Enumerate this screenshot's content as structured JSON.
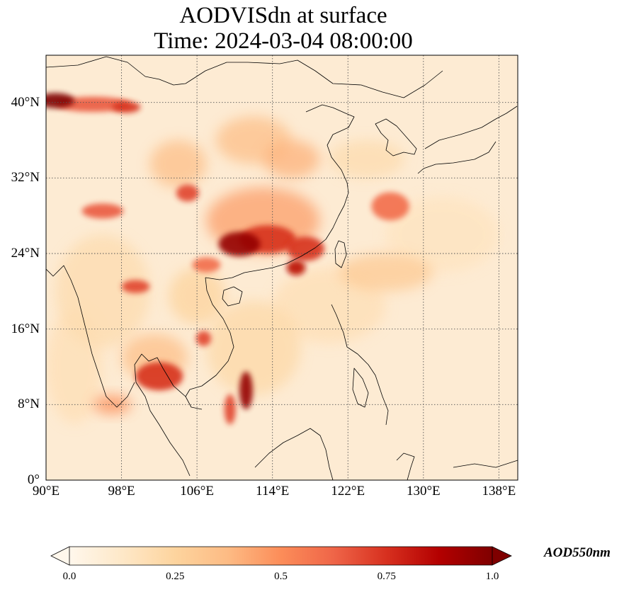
{
  "title": {
    "line1": "AODVISdn at surface",
    "line2": "Time: 2024-03-04 08:00:00"
  },
  "map": {
    "extent": {
      "lon_min": 90,
      "lon_max": 140,
      "lat_min": 0,
      "lat_max": 45
    },
    "gridlines": true,
    "colormap": "OrRd",
    "lon_ticks": [
      {
        "value": 90,
        "label": "90°E"
      },
      {
        "value": 98,
        "label": "98°E"
      },
      {
        "value": 106,
        "label": "106°E"
      },
      {
        "value": 114,
        "label": "114°E"
      },
      {
        "value": 122,
        "label": "122°E"
      },
      {
        "value": 130,
        "label": "130°E"
      },
      {
        "value": 138,
        "label": "138°E"
      }
    ],
    "lat_ticks": [
      {
        "value": 0,
        "label": "0°"
      },
      {
        "value": 8,
        "label": "8°N"
      },
      {
        "value": 16,
        "label": "16°N"
      },
      {
        "value": 24,
        "label": "24°N"
      },
      {
        "value": 32,
        "label": "32°N"
      },
      {
        "value": 40,
        "label": "40°N"
      }
    ],
    "aod_features": [
      {
        "lon": 91.0,
        "lat": 40.2,
        "rlon": 2.0,
        "rlat": 0.8,
        "value": 1.0
      },
      {
        "lon": 95.0,
        "lat": 39.8,
        "rlon": 4.0,
        "rlat": 0.8,
        "value": 0.65
      },
      {
        "lon": 98.5,
        "lat": 39.5,
        "rlon": 1.5,
        "rlat": 0.6,
        "value": 0.75
      },
      {
        "lon": 105.0,
        "lat": 30.4,
        "rlon": 1.2,
        "rlat": 0.9,
        "value": 0.7
      },
      {
        "lon": 104.0,
        "lat": 33.5,
        "rlon": 3.0,
        "rlat": 2.5,
        "value": 0.35
      },
      {
        "lon": 112.0,
        "lat": 36.0,
        "rlon": 4.0,
        "rlat": 2.5,
        "value": 0.35
      },
      {
        "lon": 116.0,
        "lat": 34.0,
        "rlon": 3.0,
        "rlat": 2.0,
        "value": 0.4
      },
      {
        "lon": 110.5,
        "lat": 25.0,
        "rlon": 2.2,
        "rlat": 1.3,
        "value": 0.95
      },
      {
        "lon": 113.5,
        "lat": 25.5,
        "rlon": 3.0,
        "rlat": 1.5,
        "value": 0.75
      },
      {
        "lon": 117.5,
        "lat": 24.5,
        "rlon": 2.0,
        "rlat": 1.3,
        "value": 0.75
      },
      {
        "lon": 116.5,
        "lat": 22.5,
        "rlon": 1.0,
        "rlat": 0.8,
        "value": 0.85
      },
      {
        "lon": 113.0,
        "lat": 27.5,
        "rlon": 6.0,
        "rlat": 3.5,
        "value": 0.45
      },
      {
        "lon": 107.0,
        "lat": 22.8,
        "rlon": 1.5,
        "rlat": 0.8,
        "value": 0.6
      },
      {
        "lon": 96.0,
        "lat": 28.5,
        "rlon": 2.2,
        "rlat": 0.8,
        "value": 0.65
      },
      {
        "lon": 99.5,
        "lat": 20.5,
        "rlon": 1.5,
        "rlat": 0.7,
        "value": 0.7
      },
      {
        "lon": 102.0,
        "lat": 11.0,
        "rlon": 2.5,
        "rlat": 1.5,
        "value": 0.75
      },
      {
        "lon": 101.5,
        "lat": 13.0,
        "rlon": 3.5,
        "rlat": 2.5,
        "value": 0.35
      },
      {
        "lon": 106.7,
        "lat": 15.0,
        "rlon": 0.8,
        "rlat": 0.8,
        "value": 0.7
      },
      {
        "lon": 111.2,
        "lat": 9.5,
        "rlon": 0.7,
        "rlat": 2.0,
        "value": 0.95
      },
      {
        "lon": 109.5,
        "lat": 7.5,
        "rlon": 0.6,
        "rlat": 1.6,
        "value": 0.7
      },
      {
        "lon": 97.0,
        "lat": 8.0,
        "rlon": 2.0,
        "rlat": 1.0,
        "value": 0.5
      },
      {
        "lon": 126.5,
        "lat": 29.0,
        "rlon": 2.0,
        "rlat": 1.5,
        "value": 0.6
      },
      {
        "lon": 126.0,
        "lat": 22.0,
        "rlon": 5.0,
        "rlat": 2.0,
        "value": 0.3
      },
      {
        "lon": 120.0,
        "lat": 18.5,
        "rlon": 6.0,
        "rlat": 4.0,
        "value": 0.18
      },
      {
        "lon": 112.0,
        "lat": 14.0,
        "rlon": 5.0,
        "rlat": 5.0,
        "value": 0.22
      },
      {
        "lon": 96.0,
        "lat": 20.0,
        "rlon": 5.0,
        "rlat": 6.0,
        "value": 0.2
      },
      {
        "lon": 93.0,
        "lat": 12.0,
        "rlon": 3.0,
        "rlat": 6.0,
        "value": 0.18
      },
      {
        "lon": 124.0,
        "lat": 34.0,
        "rlon": 4.0,
        "rlat": 2.0,
        "value": 0.2
      },
      {
        "lon": 132.0,
        "lat": 26.0,
        "rlon": 6.0,
        "rlat": 4.0,
        "value": 0.15
      },
      {
        "lon": 106.0,
        "lat": 19.5,
        "rlon": 3.0,
        "rlat": 3.0,
        "value": 0.25
      }
    ]
  },
  "colorbar": {
    "min": 0.0,
    "max": 1.0,
    "extend": "both",
    "label": "AOD550nm",
    "ticks": [
      {
        "value": 0.0,
        "label": "0.0"
      },
      {
        "value": 0.25,
        "label": "0.25"
      },
      {
        "value": 0.5,
        "label": "0.5"
      },
      {
        "value": 0.75,
        "label": "0.75"
      },
      {
        "value": 1.0,
        "label": "1.0"
      }
    ]
  }
}
